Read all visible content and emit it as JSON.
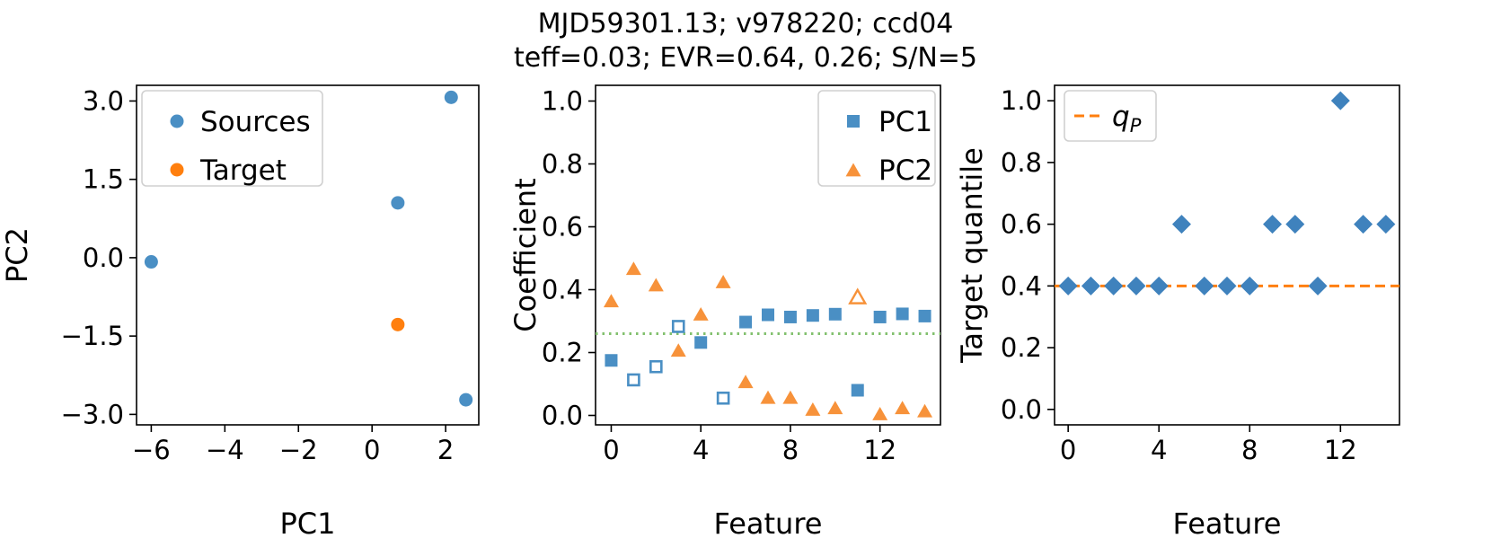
{
  "figure_title": {
    "line1": "MJD59301.13; v978220; ccd04",
    "line2": "teff=0.03; EVR=0.64, 0.26; S/N=5"
  },
  "colors": {
    "blue": "#4a8fc4",
    "orange": "#f7923a",
    "green": "#82c06e",
    "diamond": "#3f82bd",
    "dash": "#ff7f0e"
  },
  "chart_data": [
    {
      "type": "scatter",
      "id": "pca-projection",
      "xlabel": "PC1",
      "ylabel": "PC2",
      "xlim": [
        -6.4,
        2.9
      ],
      "ylim": [
        -3.2,
        3.3
      ],
      "xticks": [
        -6,
        -4,
        -2,
        0,
        2
      ],
      "xtick_labels": [
        "−6",
        "−4",
        "−2",
        "0",
        "2"
      ],
      "yticks": [
        3.0,
        1.5,
        0.0,
        -1.5,
        -3.0
      ],
      "ytick_labels": [
        "3.0",
        "1.5",
        "0.0",
        "−1.5",
        "−3.0"
      ],
      "legend": [
        "Sources",
        "Target"
      ],
      "series": [
        {
          "name": "Sources",
          "color": "#4a8fc4",
          "points": [
            [
              -6.0,
              -0.08
            ],
            [
              0.7,
              1.05
            ],
            [
              2.15,
              3.07
            ],
            [
              2.55,
              -2.72
            ]
          ]
        },
        {
          "name": "Target",
          "color": "#ff7f0e",
          "points": [
            [
              0.7,
              -1.28
            ]
          ]
        }
      ]
    },
    {
      "type": "scatter",
      "id": "pc-coefficients",
      "xlabel": "Feature",
      "ylabel": "Coefficient",
      "xlim": [
        -0.7,
        14.7
      ],
      "ylim": [
        -0.03,
        1.05
      ],
      "xticks": [
        0,
        4,
        8,
        12
      ],
      "yticks": [
        0.0,
        0.2,
        0.4,
        0.6,
        0.8,
        1.0
      ],
      "ytick_labels": [
        "0.0",
        "0.2",
        "0.4",
        "0.6",
        "0.8",
        "1.0"
      ],
      "legend": [
        "PC1",
        "PC2"
      ],
      "threshold": 0.26,
      "series": [
        {
          "name": "PC1",
          "marker": "square",
          "color": "#4a8fc4",
          "values": [
            0.175,
            0.113,
            0.155,
            0.283,
            0.232,
            0.055,
            0.297,
            0.32,
            0.313,
            0.318,
            0.322,
            0.08,
            0.313,
            0.323,
            0.316
          ],
          "hollow": [
            1,
            2,
            3,
            5
          ]
        },
        {
          "name": "PC2",
          "marker": "triangle",
          "color": "#f7923a",
          "values": [
            0.362,
            0.465,
            0.413,
            0.205,
            0.32,
            0.423,
            0.105,
            0.055,
            0.055,
            0.017,
            0.022,
            0.375,
            0.003,
            0.022,
            0.012
          ],
          "hollow": [
            11
          ]
        }
      ]
    },
    {
      "type": "scatter",
      "id": "target-quantile",
      "xlabel": "Feature",
      "ylabel": "Target quantile",
      "xlim": [
        -0.6,
        14.6
      ],
      "ylim": [
        -0.05,
        1.05
      ],
      "xticks": [
        0,
        4,
        8,
        12
      ],
      "yticks": [
        0.0,
        0.2,
        0.4,
        0.6,
        0.8,
        1.0
      ],
      "ytick_labels": [
        "0.0",
        "0.2",
        "0.4",
        "0.6",
        "0.8",
        "1.0"
      ],
      "legend": [
        "q",
        "P"
      ],
      "reference_line": 0.4,
      "values": [
        0.4,
        0.4,
        0.4,
        0.4,
        0.4,
        0.6,
        0.4,
        0.4,
        0.4,
        0.6,
        0.6,
        0.4,
        1.0,
        0.6,
        0.6
      ]
    }
  ]
}
